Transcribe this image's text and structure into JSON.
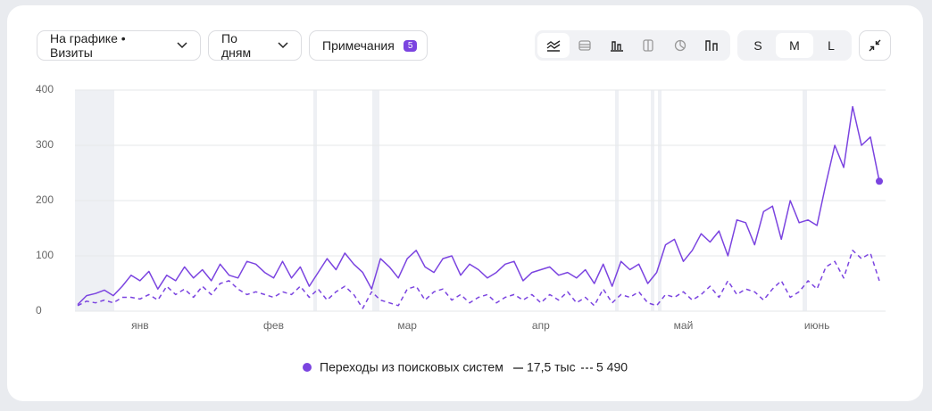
{
  "toolbar": {
    "metric_button": "На графике • Визиты",
    "period_button": "По дням",
    "notes_button": "Примечания",
    "notes_count": 5,
    "size_options": [
      "S",
      "M",
      "L"
    ],
    "size_selected": "M"
  },
  "chart_data": {
    "type": "line",
    "categories": [
      null,
      null,
      null,
      null,
      null,
      null,
      null,
      "янв",
      null,
      null,
      null,
      null,
      null,
      null,
      null,
      null,
      null,
      null,
      null,
      null,
      null,
      null,
      "фев",
      null,
      null,
      null,
      null,
      null,
      null,
      null,
      null,
      null,
      null,
      null,
      null,
      null,
      null,
      "мар",
      null,
      null,
      null,
      null,
      null,
      null,
      null,
      null,
      null,
      null,
      null,
      null,
      null,
      null,
      "апр",
      null,
      null,
      null,
      null,
      null,
      null,
      null,
      null,
      null,
      null,
      null,
      null,
      null,
      null,
      null,
      "май",
      null,
      null,
      null,
      null,
      null,
      null,
      null,
      null,
      null,
      null,
      null,
      null,
      null,
      null,
      "июнь",
      null,
      null,
      null,
      null,
      null,
      null,
      null
    ],
    "legend_label": "Переходы из поисковых систем",
    "series": [
      {
        "name": "17,5 тыс",
        "color": "#7b44e0",
        "dashed": false,
        "values": [
          12,
          28,
          32,
          38,
          28,
          45,
          65,
          55,
          72,
          40,
          65,
          55,
          80,
          60,
          75,
          55,
          85,
          65,
          60,
          90,
          85,
          70,
          60,
          90,
          60,
          80,
          45,
          70,
          95,
          75,
          105,
          85,
          70,
          40,
          95,
          80,
          60,
          95,
          110,
          80,
          70,
          95,
          100,
          65,
          85,
          75,
          60,
          70,
          85,
          90,
          55,
          70,
          75,
          80,
          65,
          70,
          60,
          75,
          50,
          85,
          45,
          90,
          75,
          85,
          50,
          70,
          120,
          130,
          90,
          110,
          140,
          125,
          145,
          100,
          165,
          160,
          120,
          180,
          190,
          130,
          200,
          160,
          165,
          155,
          230,
          300,
          260,
          370,
          300,
          315,
          235
        ]
      },
      {
        "name": "5 490",
        "color": "#7b44e0",
        "dashed": true,
        "values": [
          10,
          18,
          15,
          20,
          15,
          25,
          25,
          22,
          30,
          20,
          45,
          30,
          40,
          25,
          45,
          30,
          50,
          55,
          40,
          30,
          35,
          30,
          25,
          35,
          30,
          45,
          25,
          40,
          20,
          35,
          45,
          30,
          5,
          35,
          20,
          15,
          10,
          40,
          45,
          20,
          35,
          40,
          20,
          30,
          15,
          25,
          30,
          15,
          25,
          30,
          20,
          30,
          15,
          30,
          20,
          35,
          15,
          25,
          10,
          40,
          15,
          30,
          25,
          35,
          15,
          10,
          30,
          25,
          35,
          20,
          30,
          45,
          25,
          55,
          30,
          40,
          35,
          20,
          40,
          55,
          25,
          35,
          55,
          40,
          80,
          90,
          60,
          110,
          95,
          105,
          55
        ]
      }
    ],
    "ylim": [
      0,
      400
    ],
    "yticks": [
      0,
      100,
      200,
      300,
      400
    ],
    "grid": true
  }
}
